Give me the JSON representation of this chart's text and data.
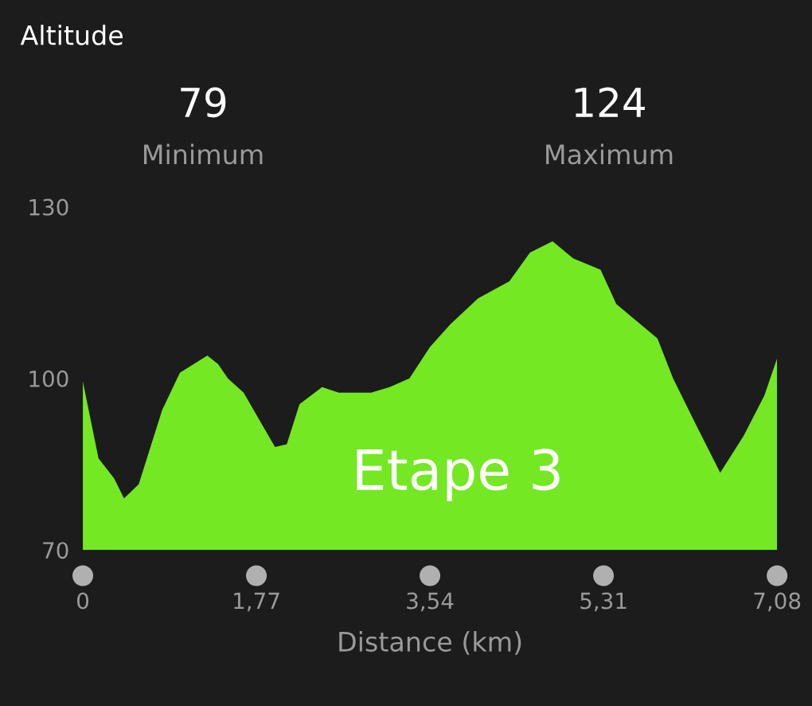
{
  "chart_data": {
    "type": "area",
    "title": "Altitude",
    "xlabel": "Distance (km)",
    "annotations": [
      "79",
      "Minimum",
      "124",
      "Maximum",
      "Etape 3"
    ],
    "x": [
      0,
      0.16,
      0.32,
      0.42,
      0.57,
      0.81,
      0.99,
      1.27,
      1.38,
      1.48,
      1.64,
      1.96,
      2.08,
      2.21,
      2.44,
      2.61,
      2.94,
      3.13,
      3.33,
      3.54,
      3.75,
      4.03,
      4.35,
      4.56,
      4.79,
      5.0,
      5.28,
      5.44,
      5.86,
      6.02,
      6.25,
      6.5,
      6.74,
      6.95,
      7.08
    ],
    "series": [
      {
        "color": "#74e823",
        "values": [
          99.5,
          86,
          82.5,
          79,
          81.5,
          94.5,
          101,
          104,
          102.5,
          100,
          97.5,
          88,
          88.5,
          95.5,
          98.5,
          97.5,
          97.5,
          98.5,
          100,
          105.5,
          109.5,
          114,
          117,
          122,
          124,
          121,
          119,
          113,
          107,
          100,
          92,
          83.5,
          90,
          97,
          103.5
        ]
      }
    ],
    "xlim": [
      0,
      7.08
    ],
    "ylim": [
      70,
      130
    ],
    "xticks": [
      0,
      {
        "value": 1.77,
        "label": "1,77"
      },
      {
        "value": 3.54,
        "label": "3,54"
      },
      {
        "value": 5.31,
        "label": "5,31"
      },
      {
        "value": 7.08,
        "label": "7,08"
      }
    ],
    "yticks": [
      70,
      100,
      130
    ],
    "grid": false,
    "legend": false
  }
}
